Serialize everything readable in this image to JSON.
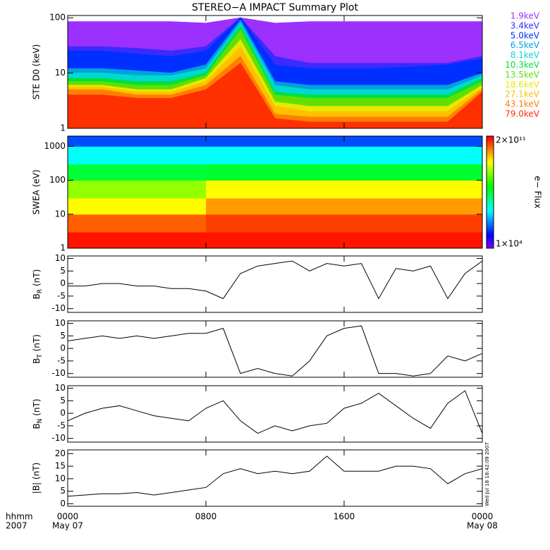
{
  "chart_data": [
    {
      "type": "area",
      "title": "STEREO−A IMPACT Summary Plot",
      "ylabel": "STE D0 (keV)",
      "log": true,
      "xlim": [
        0,
        24
      ],
      "ylim": [
        1,
        110
      ],
      "yticks": [
        1,
        10,
        100
      ],
      "x": [
        0,
        2,
        4,
        6,
        8,
        10,
        12,
        14,
        16,
        18,
        20,
        22,
        24
      ],
      "series": [
        {
          "name": "1.9keV",
          "color": "#9b30ff",
          "values": [
            85,
            85,
            85,
            85,
            80,
            100,
            80,
            85,
            85,
            85,
            85,
            85,
            85
          ]
        },
        {
          "name": "3.4keV",
          "color": "#3a2bff",
          "values": [
            30,
            30,
            28,
            25,
            30,
            100,
            20,
            15,
            15,
            15,
            15,
            15,
            20
          ]
        },
        {
          "name": "5.0keV",
          "color": "#0030ff",
          "values": [
            25,
            25,
            22,
            20,
            25,
            100,
            14,
            12,
            12,
            12,
            13,
            14,
            18
          ]
        },
        {
          "name": "6.5keV",
          "color": "#00a0e0",
          "values": [
            12,
            12,
            11,
            10,
            14,
            90,
            7,
            6,
            6,
            6,
            6,
            6,
            10
          ]
        },
        {
          "name": "8.1keV",
          "color": "#00d8d0",
          "values": [
            10,
            10,
            9,
            9,
            12,
            80,
            6,
            5,
            5,
            5,
            5,
            5,
            9
          ]
        },
        {
          "name": "10.3keV",
          "color": "#00e040",
          "values": [
            8,
            8,
            7,
            7,
            10,
            70,
            4.5,
            4,
            4,
            4,
            4,
            4,
            8
          ]
        },
        {
          "name": "13.5keV",
          "color": "#60e000",
          "values": [
            7,
            7,
            6,
            6,
            9,
            60,
            4,
            3.5,
            3.5,
            3.5,
            3.5,
            3.5,
            7
          ]
        },
        {
          "name": "18.6keV",
          "color": "#e8e800",
          "values": [
            6,
            6,
            5,
            5,
            8,
            40,
            3,
            2.5,
            2.5,
            2.5,
            2.5,
            2.5,
            6
          ]
        },
        {
          "name": "27.1keV",
          "color": "#ffc000",
          "values": [
            5.5,
            5.5,
            4.5,
            4.5,
            7,
            30,
            2.5,
            2,
            2,
            2,
            2,
            2,
            5.5
          ]
        },
        {
          "name": "43.1keV",
          "color": "#ff8000",
          "values": [
            5,
            5,
            4,
            4,
            6,
            20,
            1.8,
            1.6,
            1.6,
            1.6,
            1.6,
            1.6,
            5
          ]
        },
        {
          "name": "79.0keV",
          "color": "#ff3000",
          "values": [
            4,
            4,
            3.5,
            3.5,
            5,
            15,
            1.5,
            1.3,
            1.3,
            1.3,
            1.3,
            1.3,
            4.5
          ]
        }
      ]
    },
    {
      "type": "spectrogram",
      "ylabel": "SWEA (eV)",
      "log": true,
      "colorbar_label": "e− Flux",
      "xlim": [
        0,
        24
      ],
      "ylim": [
        1,
        2000
      ],
      "yticks": [
        1,
        10,
        100,
        1000
      ],
      "clim": [
        10000,
        200000000000
      ],
      "cticks": [
        {
          "value": 200000000000,
          "label": "2×10¹¹"
        },
        {
          "value": 10000,
          "label": "1×10⁴"
        }
      ],
      "xbins": [
        0,
        2,
        4,
        6,
        8,
        10,
        12,
        14,
        16,
        18,
        20,
        22,
        24
      ],
      "ybins": [
        1,
        3,
        10,
        30,
        100,
        300,
        1000,
        2000
      ],
      "z": [
        [
          150000000000,
          50000000000,
          5000000000,
          1000000000,
          50000000,
          3000000,
          200000
        ],
        [
          150000000000,
          50000000000,
          5000000000,
          1000000000,
          50000000,
          3000000,
          200000
        ],
        [
          150000000000,
          50000000000,
          5000000000,
          1000000000,
          50000000,
          3000000,
          200000
        ],
        [
          150000000000,
          50000000000,
          5000000000,
          1000000000,
          50000000,
          3000000,
          200000
        ],
        [
          150000000000,
          80000000000,
          20000000000,
          5000000000,
          60000000,
          3000000,
          200000
        ],
        [
          150000000000,
          80000000000,
          20000000000,
          5000000000,
          60000000,
          3000000,
          200000
        ],
        [
          150000000000,
          80000000000,
          20000000000,
          5000000000,
          60000000,
          3000000,
          200000
        ],
        [
          150000000000,
          80000000000,
          20000000000,
          5000000000,
          60000000,
          3000000,
          200000
        ],
        [
          150000000000,
          80000000000,
          20000000000,
          5000000000,
          60000000,
          3000000,
          200000
        ],
        [
          150000000000,
          80000000000,
          20000000000,
          5000000000,
          60000000,
          3000000,
          200000
        ],
        [
          150000000000,
          80000000000,
          20000000000,
          5000000000,
          60000000,
          3000000,
          200000
        ],
        [
          150000000000,
          80000000000,
          20000000000,
          5000000000,
          60000000,
          3000000,
          200000
        ]
      ]
    },
    {
      "type": "line",
      "ylabel_base": "B",
      "ylabel_sub": "R",
      "ylabel_unit": " (nT)",
      "xlim": [
        0,
        24
      ],
      "ylim": [
        -11.5,
        11
      ],
      "yticks": [
        -10,
        -5,
        0,
        5,
        10
      ],
      "color": "#000000",
      "x": [
        0,
        1,
        2,
        3,
        4,
        5,
        6,
        7,
        8,
        9,
        10,
        11,
        12,
        13,
        14,
        15,
        16,
        17,
        18,
        19,
        20,
        21,
        22,
        23,
        24
      ],
      "values": [
        -1,
        -1,
        0,
        0,
        -1,
        -1,
        -2,
        -2,
        -3,
        -6,
        4,
        7,
        8,
        9,
        5,
        8,
        7,
        8,
        -6,
        6,
        5,
        7,
        -6,
        4,
        9
      ]
    },
    {
      "type": "line",
      "ylabel_base": "B",
      "ylabel_sub": "T",
      "ylabel_unit": " (nT)",
      "xlim": [
        0,
        24
      ],
      "ylim": [
        -11.5,
        11
      ],
      "yticks": [
        -10,
        -5,
        0,
        5,
        10
      ],
      "color": "#000000",
      "x": [
        0,
        1,
        2,
        3,
        4,
        5,
        6,
        7,
        8,
        9,
        10,
        11,
        12,
        13,
        14,
        15,
        16,
        17,
        18,
        19,
        20,
        21,
        22,
        23,
        24
      ],
      "values": [
        3,
        4,
        5,
        4,
        5,
        4,
        5,
        6,
        6,
        8,
        -10,
        -8,
        -10,
        -11,
        -5,
        5,
        8,
        9,
        -10,
        -10,
        -11,
        -10,
        -3,
        -5,
        -2
      ]
    },
    {
      "type": "line",
      "ylabel_base": "B",
      "ylabel_sub": "N",
      "ylabel_unit": " (nT)",
      "xlim": [
        0,
        24
      ],
      "ylim": [
        -11.5,
        11
      ],
      "yticks": [
        -10,
        -5,
        0,
        5,
        10
      ],
      "color": "#000000",
      "x": [
        0,
        1,
        2,
        3,
        4,
        5,
        6,
        7,
        8,
        9,
        10,
        11,
        12,
        13,
        14,
        15,
        16,
        17,
        18,
        19,
        20,
        21,
        22,
        23,
        24
      ],
      "values": [
        -3,
        0,
        2,
        3,
        1,
        -1,
        -2,
        -3,
        2,
        5,
        -3,
        -8,
        -5,
        -7,
        -5,
        -4,
        2,
        4,
        8,
        3,
        -2,
        -6,
        4,
        9,
        -8
      ]
    },
    {
      "type": "line",
      "ylabel": "|B| (nT)",
      "annotation": "Wed Jul 18 18:42:09 2007",
      "xlim": [
        0,
        24
      ],
      "ylim": [
        -1,
        21.5
      ],
      "yticks": [
        0,
        5,
        10,
        15,
        20
      ],
      "color": "#000000",
      "x": [
        0,
        1,
        2,
        3,
        4,
        5,
        6,
        7,
        8,
        9,
        10,
        11,
        12,
        13,
        14,
        15,
        16,
        17,
        18,
        19,
        20,
        21,
        22,
        23,
        24
      ],
      "values": [
        3,
        3.5,
        4,
        4,
        4.5,
        3.5,
        4.5,
        5.5,
        6.5,
        12,
        14,
        12,
        13,
        12,
        13,
        19,
        13,
        13,
        13,
        15,
        15,
        14,
        8,
        12,
        14
      ],
      "xticks": [
        {
          "value": 0,
          "label": "0000"
        },
        {
          "value": 8,
          "label": "0800"
        },
        {
          "value": 16,
          "label": "1600"
        },
        {
          "value": 24,
          "label": "0000"
        }
      ],
      "xtick_sublabels": [
        "May 07",
        null,
        null,
        "May 08"
      ],
      "xaxis_title": [
        "hhmm",
        "2007"
      ]
    }
  ]
}
